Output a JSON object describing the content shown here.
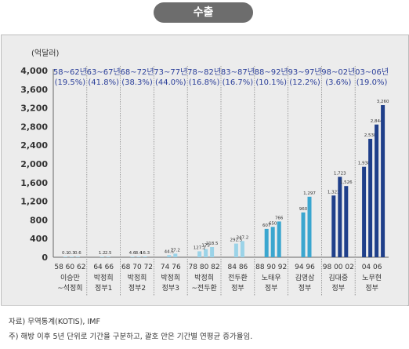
{
  "header": {
    "title": "수출"
  },
  "chart_data": {
    "type": "bar",
    "unit_label": "(억달러)",
    "ylim": [
      0,
      4000
    ],
    "yticks": [
      0,
      400,
      800,
      1200,
      1600,
      2000,
      2400,
      2800,
      3200,
      3600,
      4000
    ],
    "ytick_labels": [
      "0",
      "400",
      "800",
      "1,200",
      "1,600",
      "2,000",
      "2,400",
      "2,800",
      "3,200",
      "3,600",
      "4,000"
    ],
    "grid": false,
    "periods": [
      {
        "range": "58~62년",
        "growth": "(19.5%)",
        "admin": [
          "이승만",
          "~석정희"
        ],
        "bars": [
          {
            "label": "0.1",
            "value": 0.1
          },
          {
            "label": "0.3",
            "value": 0.3
          },
          {
            "label": "0.6",
            "value": 0.6
          }
        ],
        "xticks": [
          "58",
          "60",
          "62"
        ]
      },
      {
        "range": "63~67년",
        "growth": "(41.8%)",
        "admin": [
          "박정희",
          "정부1"
        ],
        "bars": [
          {
            "label": "1.2",
            "value": 1.2
          },
          {
            "label": "2.5",
            "value": 2.5
          }
        ],
        "xticks": [
          "64",
          "66"
        ]
      },
      {
        "range": "68~72년",
        "growth": "(38.3%)",
        "admin": [
          "박정희",
          "정부2"
        ],
        "bars": [
          {
            "label": "4.6",
            "value": 4.6
          },
          {
            "label": "8.4",
            "value": 8.4
          },
          {
            "label": "16.3",
            "value": 16.3
          }
        ],
        "xticks": [
          "68",
          "70",
          "72"
        ]
      },
      {
        "range": "73~77년",
        "growth": "(44.0%)",
        "admin": [
          "박정희",
          "정부3"
        ],
        "bars": [
          {
            "label": "44.6",
            "value": 44.6
          },
          {
            "label": "77.2",
            "value": 77.2
          }
        ],
        "xticks": [
          "74",
          "76"
        ]
      },
      {
        "range": "78~82년",
        "growth": "(16.8%)",
        "admin": [
          "박정희",
          "~전두환"
        ],
        "bars": [
          {
            "label": "127.2",
            "value": 127.2
          },
          {
            "label": "175",
            "value": 175
          },
          {
            "label": "218.5",
            "value": 218.5
          }
        ],
        "xticks": [
          "78",
          "80",
          "82"
        ]
      },
      {
        "range": "83~87년",
        "growth": "(16.7%)",
        "admin": [
          "전두환",
          "정부"
        ],
        "bars": [
          {
            "label": "292.5",
            "value": 292.5
          },
          {
            "label": "347.2",
            "value": 347.2
          }
        ],
        "xticks": [
          "84",
          "86"
        ]
      },
      {
        "range": "88~92년",
        "growth": "(10.1%)",
        "admin": [
          "노태우",
          "정부"
        ],
        "bars": [
          {
            "label": "607",
            "value": 607
          },
          {
            "label": "650",
            "value": 650
          },
          {
            "label": "766",
            "value": 766
          }
        ],
        "xticks": [
          "88",
          "90",
          "92"
        ]
      },
      {
        "range": "93~97년",
        "growth": "(12.2%)",
        "admin": [
          "김영삼",
          "정부"
        ],
        "bars": [
          {
            "label": "960",
            "value": 960
          },
          {
            "label": "1,297",
            "value": 1297
          }
        ],
        "xticks": [
          "94",
          "96"
        ]
      },
      {
        "range": "98~02년",
        "growth": "(3.6%)",
        "admin": [
          "김대중",
          "정부"
        ],
        "bars": [
          {
            "label": "1,323",
            "value": 1323
          },
          {
            "label": "1,723",
            "value": 1723
          },
          {
            "label": "1,526",
            "value": 1526
          }
        ],
        "xticks": [
          "98",
          "00",
          "02"
        ]
      },
      {
        "range": "03~06년",
        "growth": "(19.0%)",
        "admin": [
          "노무현",
          "정부"
        ],
        "bars": [
          {
            "label": "1,938",
            "value": 1938
          },
          {
            "label": "2,538",
            "value": 2538
          },
          {
            "label": "2,844",
            "value": 2844
          },
          {
            "label": "3,260",
            "value": 3260
          }
        ],
        "xticks": [
          "04",
          "06"
        ]
      }
    ],
    "colors": {
      "bar_light": "#9bd3e8",
      "bar_mid": "#3aa6cf",
      "bar_dark": "#1f3f8a",
      "period_text": "#2b3f9a",
      "divider": "#888888"
    }
  },
  "notes": {
    "source": "자료) 무역통계(KOTIS), IMF",
    "footnote": "주)  해방 이후 5년 단위로 기간을 구분하고, 괄호 안은 기간별 연평균 증가율임."
  }
}
